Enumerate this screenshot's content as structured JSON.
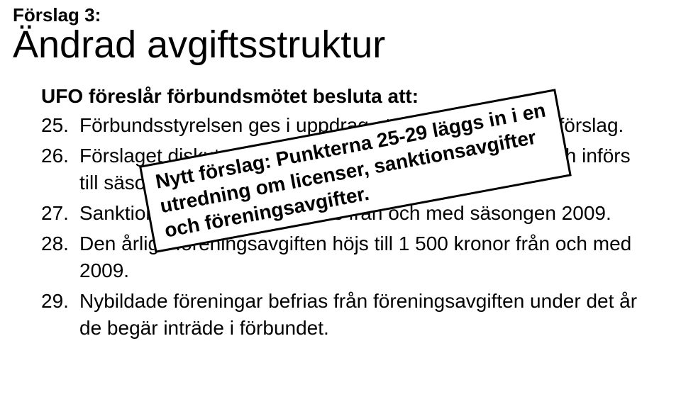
{
  "pretitle": "Förslag 3:",
  "title": "Ändrad avgiftsstruktur",
  "subtitle": "UFO föreslår förbundsmötet besluta att:",
  "items": [
    {
      "num": "25.",
      "text": "Förbundsstyrelsen ges i uppdrag att utarbeta ett licensförslag."
    },
    {
      "num": "26.",
      "text": "Förslaget diskuteras vid distriktskonferenserna 2008 och införs till säsongen 2009."
    },
    {
      "num": "27.",
      "text": "Sanktionsavgifterna avskaffas från och med säsongen 2009."
    },
    {
      "num": "28.",
      "text": "Den årliga föreningsavgiften höjs till 1 500 kronor från och med 2009."
    },
    {
      "num": "29.",
      "text": "Nybildade föreningar befrias från föreningsavgiften under det år de begär inträde i förbundet."
    }
  ],
  "callout": {
    "line1": "Nytt förslag: Punkterna 25-29 läggs in i en",
    "line2": "utredning om licenser, sanktionsavgifter",
    "line3": "och föreningsavgifter.",
    "border_color": "#000000",
    "background": "#ffffff",
    "rotation_deg": -10.5
  },
  "colors": {
    "background": "#ffffff",
    "text": "#000000"
  },
  "typography": {
    "pretitle_fontsize": 26,
    "title_fontsize": 54,
    "subtitle_fontsize": 28,
    "body_fontsize": 28,
    "callout_fontsize": 28
  }
}
